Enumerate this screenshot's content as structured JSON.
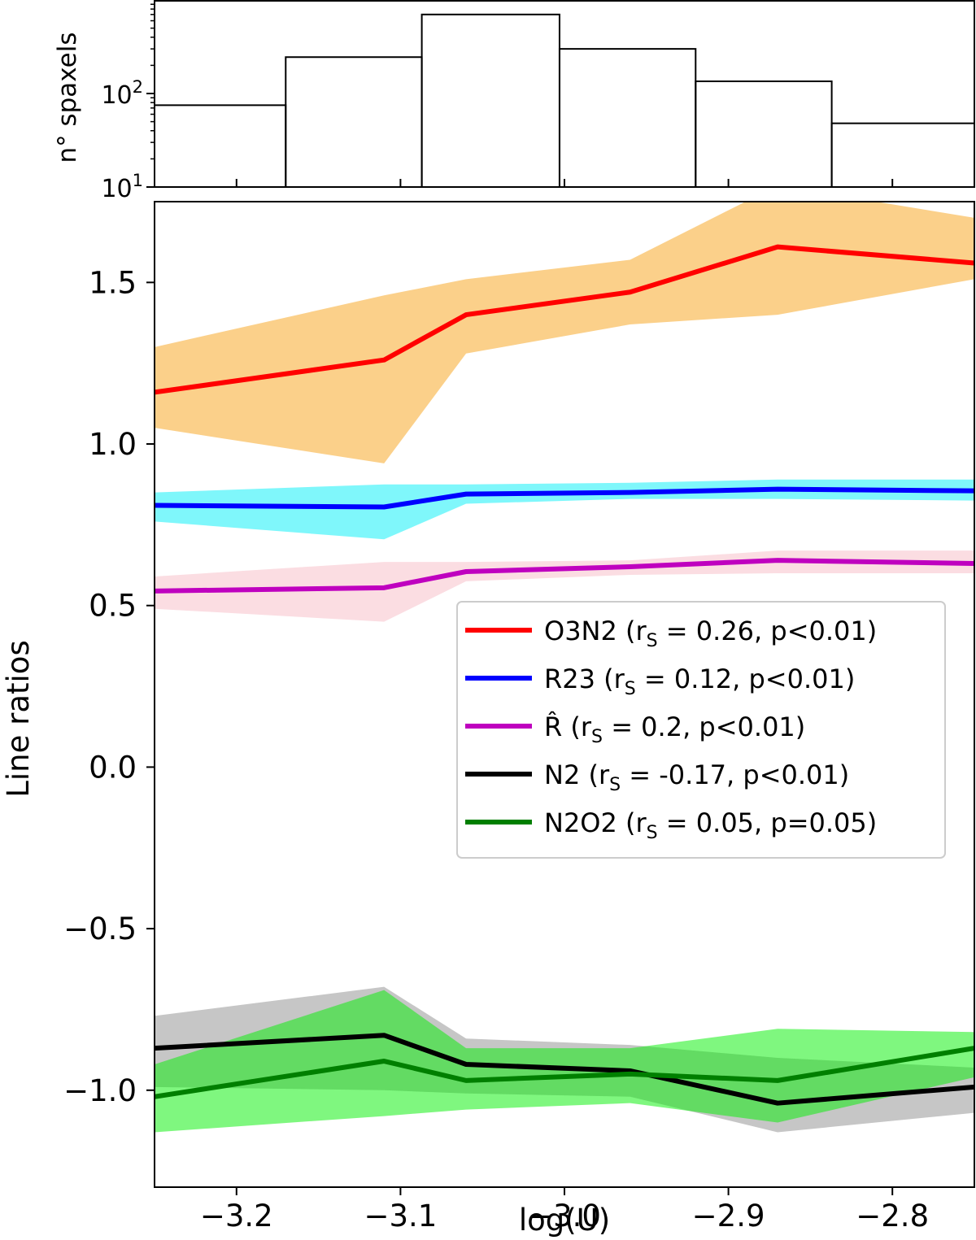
{
  "chart_data": [
    {
      "type": "bar",
      "subtype": "histogram",
      "ylabel": "n° spaxels",
      "yscale": "log",
      "ylim": [
        10,
        1000
      ],
      "ytick_labels": [
        {
          "base": "10",
          "exp": "1",
          "value": 10
        },
        {
          "base": "10",
          "exp": "2",
          "value": 100
        }
      ],
      "bins": [
        {
          "x0": -3.25,
          "x1": -3.17,
          "count": 75
        },
        {
          "x0": -3.17,
          "x1": -3.087,
          "count": 245
        },
        {
          "x0": -3.087,
          "x1": -3.003,
          "count": 700
        },
        {
          "x0": -3.003,
          "x1": -2.92,
          "count": 300
        },
        {
          "x0": -2.92,
          "x1": -2.837,
          "count": 135
        },
        {
          "x0": -2.837,
          "x1": -2.75,
          "count": 48
        }
      ],
      "xlim": [
        -3.25,
        -2.75
      ]
    },
    {
      "type": "line",
      "xlabel": "log(U)",
      "ylabel": "Line ratios",
      "xlim": [
        -3.25,
        -2.75
      ],
      "ylim": [
        -1.3,
        1.75
      ],
      "x_ticks": [
        -3.2,
        -3.1,
        -3.0,
        -2.9,
        -2.8
      ],
      "x_tick_labels": [
        "−3.2",
        "−3.1",
        "−3.0",
        "−2.9",
        "−2.8"
      ],
      "y_ticks": [
        1.5,
        1.0,
        0.5,
        0.0,
        -0.5,
        -1.0
      ],
      "y_tick_labels": [
        "1.5",
        "1.0",
        "0.5",
        "0.0",
        "−0.5",
        "−1.0"
      ],
      "legend_position": "center-right",
      "series": [
        {
          "name": "O3N2",
          "label_name": "O3N2",
          "rs": "0.26",
          "p": "p<0.01",
          "color": "#ff0000",
          "band_color": "#fbd08a",
          "band_opacity": 1.0,
          "x": [
            -3.25,
            -3.11,
            -3.06,
            -2.96,
            -2.87,
            -2.75
          ],
          "y": [
            1.16,
            1.26,
            1.4,
            1.47,
            1.61,
            1.56
          ],
          "lower": [
            1.05,
            0.94,
            1.28,
            1.37,
            1.4,
            1.51
          ],
          "upper": [
            1.3,
            1.46,
            1.51,
            1.57,
            1.8,
            1.7
          ]
        },
        {
          "name": "R23",
          "label_name": "R23",
          "rs": "0.12",
          "p": "p<0.01",
          "color": "#0000ff",
          "band_color": "#7ff7fb",
          "band_opacity": 1.0,
          "x": [
            -3.25,
            -3.11,
            -3.06,
            -2.96,
            -2.87,
            -2.75
          ],
          "y": [
            0.81,
            0.805,
            0.845,
            0.85,
            0.86,
            0.855
          ],
          "lower": [
            0.76,
            0.705,
            0.815,
            0.83,
            0.83,
            0.825
          ],
          "upper": [
            0.85,
            0.875,
            0.875,
            0.88,
            0.89,
            0.89
          ]
        },
        {
          "name": "R-hat",
          "label_name": "R̂",
          "rs": "0.2",
          "p": "p<0.01",
          "color": "#bf00bf",
          "band_color": "#fbdde2",
          "band_opacity": 1.0,
          "x": [
            -3.25,
            -3.11,
            -3.06,
            -2.96,
            -2.87,
            -2.75
          ],
          "y": [
            0.545,
            0.555,
            0.605,
            0.62,
            0.64,
            0.63
          ],
          "lower": [
            0.49,
            0.45,
            0.575,
            0.595,
            0.6,
            0.6
          ],
          "upper": [
            0.59,
            0.635,
            0.635,
            0.64,
            0.67,
            0.67
          ]
        },
        {
          "name": "N2",
          "label_name": "N2",
          "rs": "-0.17",
          "p": "p<0.01",
          "color": "#000000",
          "band_color": "#c6c6c6",
          "band_opacity": 1.0,
          "x": [
            -3.25,
            -3.11,
            -3.06,
            -2.96,
            -2.87,
            -2.75
          ],
          "y": [
            -0.87,
            -0.83,
            -0.92,
            -0.94,
            -1.04,
            -0.99
          ],
          "lower": [
            -0.99,
            -1.0,
            -1.01,
            -1.02,
            -1.13,
            -1.07
          ],
          "upper": [
            -0.77,
            -0.68,
            -0.84,
            -0.86,
            -0.9,
            -0.93
          ]
        },
        {
          "name": "N2O2",
          "label_name": "N2O2",
          "rs": "0.05",
          "p": "p=0.05",
          "color": "#007f00",
          "band_color": "#00f000",
          "band_opacity": 0.5,
          "x": [
            -3.25,
            -3.11,
            -3.06,
            -2.96,
            -2.87,
            -2.75
          ],
          "y": [
            -1.02,
            -0.91,
            -0.97,
            -0.95,
            -0.97,
            -0.87
          ],
          "lower": [
            -1.13,
            -1.08,
            -1.06,
            -1.04,
            -1.1,
            -0.96
          ],
          "upper": [
            -0.92,
            -0.69,
            -0.87,
            -0.87,
            -0.81,
            -0.82
          ]
        }
      ]
    }
  ]
}
